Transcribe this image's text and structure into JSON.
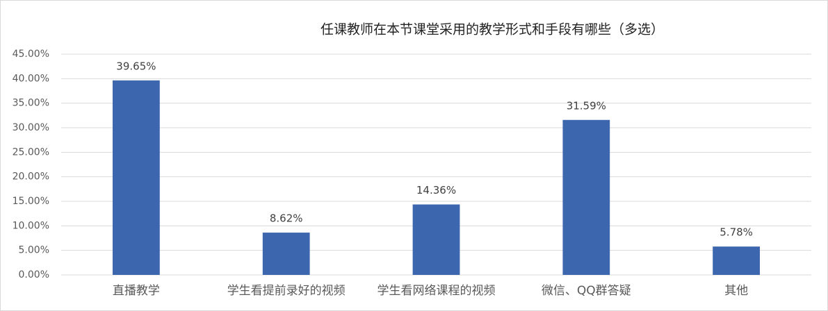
{
  "chart_data": {
    "type": "bar",
    "title": "任课教师在本节课堂采用的教学形式和手段有哪些（多选）",
    "categories": [
      "直播教学",
      "学生看提前录好的视频",
      "学生看网络课程的视频",
      "微信、QQ群答疑",
      "其他"
    ],
    "values": [
      39.65,
      8.62,
      14.36,
      31.59,
      5.78
    ],
    "value_labels": [
      "39.65%",
      "8.62%",
      "14.36%",
      "31.59%",
      "5.78%"
    ],
    "color": "#3c66ae",
    "ylim": [
      0,
      45
    ],
    "yticks": [
      {
        "value": 0,
        "label": "0.00%"
      },
      {
        "value": 5,
        "label": "5.00%"
      },
      {
        "value": 10,
        "label": "10.00%"
      },
      {
        "value": 15,
        "label": "15.00%"
      },
      {
        "value": 20,
        "label": "20.00%"
      },
      {
        "value": 25,
        "label": "25.00%"
      },
      {
        "value": 30,
        "label": "30.00%"
      },
      {
        "value": 35,
        "label": "35.00%"
      },
      {
        "value": 40,
        "label": "40.00%"
      },
      {
        "value": 45,
        "label": "45.00%"
      }
    ],
    "grid": true
  }
}
